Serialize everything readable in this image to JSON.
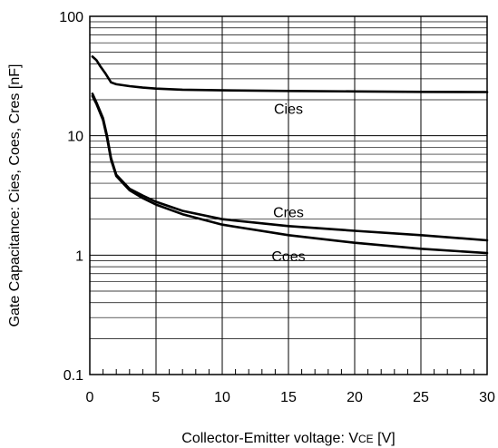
{
  "chart_data": {
    "type": "line",
    "title": "",
    "xlabel": "Collector-Emitter voltage: VCE [V]",
    "xlabel_parts": {
      "main": "Collector-Emitter voltage: V",
      "subscript": "CE",
      "unit": " [V]"
    },
    "ylabel": "Gate Capacitance: Cies, Coes, Cres [nF]",
    "xlim": [
      0,
      30
    ],
    "ylim": [
      0.1,
      100
    ],
    "yscale": "log",
    "grid": true,
    "x_ticks": [
      0,
      5,
      10,
      15,
      20,
      25,
      30
    ],
    "x_tick_labels": [
      "0",
      "5",
      "10",
      "15",
      "20",
      "25",
      "30"
    ],
    "y_ticks": [
      0.1,
      1,
      10,
      100
    ],
    "y_tick_labels": [
      "0.1",
      "1",
      "10",
      "100"
    ],
    "series": [
      {
        "name": "Cies",
        "x": [
          0.2,
          0.5,
          0.8,
          1.2,
          1.6,
          2.0,
          3,
          4,
          5,
          7,
          10,
          15,
          20,
          25,
          30
        ],
        "y": [
          46,
          43,
          38,
          33,
          28,
          27,
          26,
          25.3,
          24.8,
          24.3,
          24,
          23.7,
          23.5,
          23.3,
          23.2
        ]
      },
      {
        "name": "Cres",
        "x": [
          0.2,
          0.5,
          1.0,
          1.3,
          1.6,
          2.0,
          3,
          4,
          5,
          7,
          10,
          15,
          20,
          25,
          30
        ],
        "y": [
          22.5,
          19,
          14,
          10,
          6.5,
          4.7,
          3.6,
          3.15,
          2.8,
          2.35,
          2.0,
          1.75,
          1.6,
          1.47,
          1.33
        ]
      },
      {
        "name": "Coes",
        "x": [
          0.2,
          0.5,
          1.0,
          1.3,
          1.6,
          2.0,
          3,
          4,
          5,
          7,
          10,
          15,
          20,
          25,
          30
        ],
        "y": [
          21.5,
          18.5,
          13.5,
          9.6,
          6.3,
          4.6,
          3.5,
          3.0,
          2.65,
          2.2,
          1.8,
          1.47,
          1.27,
          1.13,
          1.04
        ]
      }
    ],
    "series_labels": [
      {
        "text": "Cies",
        "x": 15,
        "y": 17
      },
      {
        "text": "Cres",
        "x": 15,
        "y": 2.3
      },
      {
        "text": "Coes",
        "x": 15,
        "y": 0.99
      }
    ]
  }
}
